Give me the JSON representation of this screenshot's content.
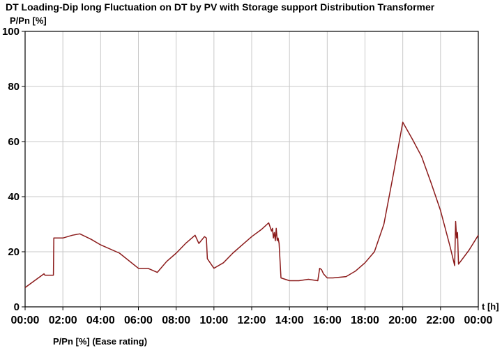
{
  "chart_data": {
    "type": "line",
    "title": "DT Loading-Dip long Fluctuation on DT by PV with Storage support Distribution Transformer",
    "ylabel": "P/Pn [%]",
    "xlabel": "t [h]",
    "ylim": [
      0,
      100
    ],
    "xlim": [
      0,
      24
    ],
    "grid": true,
    "y_ticks": [
      "0",
      "20",
      "40",
      "60",
      "80",
      "100"
    ],
    "x_ticks": [
      "00:00",
      "02:00",
      "04:00",
      "06:00",
      "08:00",
      "10:00",
      "12:00",
      "14:00",
      "16:00",
      "18:00",
      "20:00",
      "22:00",
      "00:00"
    ],
    "legend": "bottom-left",
    "series": [
      {
        "name": "P/Pn [%] (Ease rating)",
        "color": "#8b1a1a",
        "x": [
          0,
          0.5,
          1.0,
          1.05,
          1.5,
          1.52,
          2.0,
          2.5,
          2.9,
          3.5,
          4.0,
          5.0,
          6.0,
          6.5,
          7.0,
          7.5,
          8.0,
          8.5,
          9.0,
          9.2,
          9.5,
          9.6,
          9.65,
          10.0,
          10.5,
          11.0,
          11.5,
          12.0,
          12.5,
          12.9,
          13.05,
          13.1,
          13.15,
          13.2,
          13.25,
          13.3,
          13.35,
          13.4,
          13.45,
          13.5,
          13.55,
          14.0,
          14.5,
          15.0,
          15.5,
          15.6,
          15.7,
          15.8,
          16.0,
          16.3,
          17.0,
          17.5,
          18.0,
          18.5,
          19.0,
          19.5,
          20.0,
          20.5,
          21.0,
          21.5,
          22.0,
          22.5,
          22.75,
          22.8,
          22.85,
          22.9,
          22.95,
          23.5,
          24.0
        ],
        "y": [
          7,
          9.5,
          12,
          11.5,
          11.5,
          25,
          25,
          26,
          26.5,
          24.5,
          22.5,
          19.5,
          14,
          14,
          12.5,
          16.5,
          19.5,
          23,
          26,
          23,
          25.5,
          25,
          17.5,
          14,
          16,
          19.5,
          22.5,
          25.5,
          28,
          30.5,
          27.5,
          28.5,
          25,
          27,
          24,
          28.5,
          24,
          25,
          23,
          17,
          10.5,
          9.5,
          9.5,
          10,
          9.5,
          14,
          13.5,
          12,
          10.5,
          10.5,
          11,
          13,
          16,
          20,
          30,
          48,
          67,
          61,
          54.5,
          45,
          35,
          22,
          15,
          31,
          25,
          27,
          15.5,
          20.5,
          26
        ]
      }
    ]
  }
}
